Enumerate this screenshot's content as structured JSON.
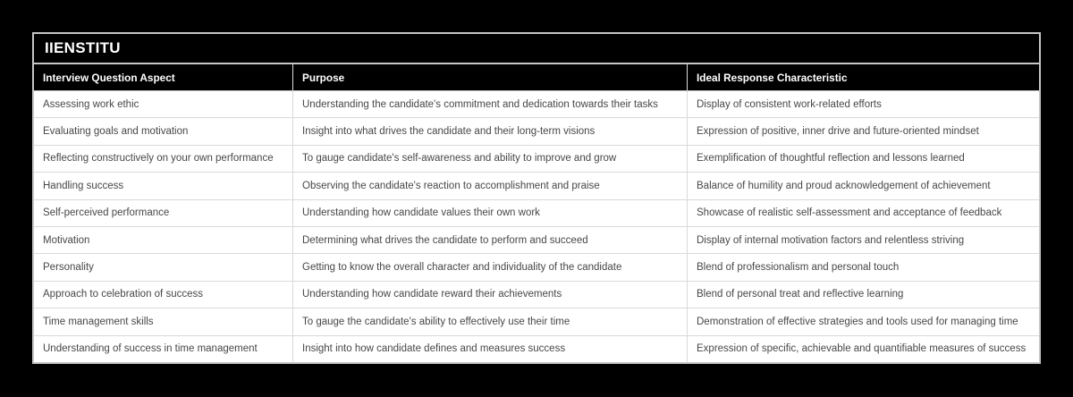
{
  "brand": {
    "title": "IIENSTITU"
  },
  "colors": {
    "page_bg": "#000000",
    "card_border": "#c6c6c6",
    "header_bg": "#000000",
    "header_text": "#ffffff",
    "body_bg": "#ffffff",
    "body_text": "#474747",
    "row_separator": "#d9d9d9"
  },
  "chart_data": {
    "type": "table",
    "title": "IIENSTITU",
    "columns": [
      "Interview Question Aspect",
      "Purpose",
      "Ideal Response Characteristic"
    ],
    "rows": [
      [
        "Assessing work ethic",
        "Understanding the candidate's commitment and dedication towards their tasks",
        "Display of consistent work-related efforts"
      ],
      [
        "Evaluating goals and motivation",
        "Insight into what drives the candidate and their long-term visions",
        "Expression of positive, inner drive and future-oriented mindset"
      ],
      [
        "Reflecting constructively on your own performance",
        "To gauge candidate's self-awareness and ability to improve and grow",
        "Exemplification of thoughtful reflection and lessons learned"
      ],
      [
        "Handling success",
        "Observing the candidate's reaction to accomplishment and praise",
        "Balance of humility and proud acknowledgement of achievement"
      ],
      [
        "Self-perceived performance",
        "Understanding how candidate values their own work",
        "Showcase of realistic self-assessment and acceptance of feedback"
      ],
      [
        "Motivation",
        "Determining what drives the candidate to perform and succeed",
        "Display of internal motivation factors and relentless striving"
      ],
      [
        "Personality",
        "Getting to know the overall character and individuality of the candidate",
        "Blend of professionalism and personal touch"
      ],
      [
        "Approach to celebration of success",
        "Understanding how candidate reward their achievements",
        "Blend of personal treat and reflective learning"
      ],
      [
        "Time management skills",
        "To gauge the candidate's ability to effectively use their time",
        "Demonstration of effective strategies and tools used for managing time"
      ],
      [
        "Understanding of success in time management",
        "Insight into how candidate defines and measures success",
        "Expression of specific, achievable and quantifiable measures of success"
      ]
    ]
  }
}
